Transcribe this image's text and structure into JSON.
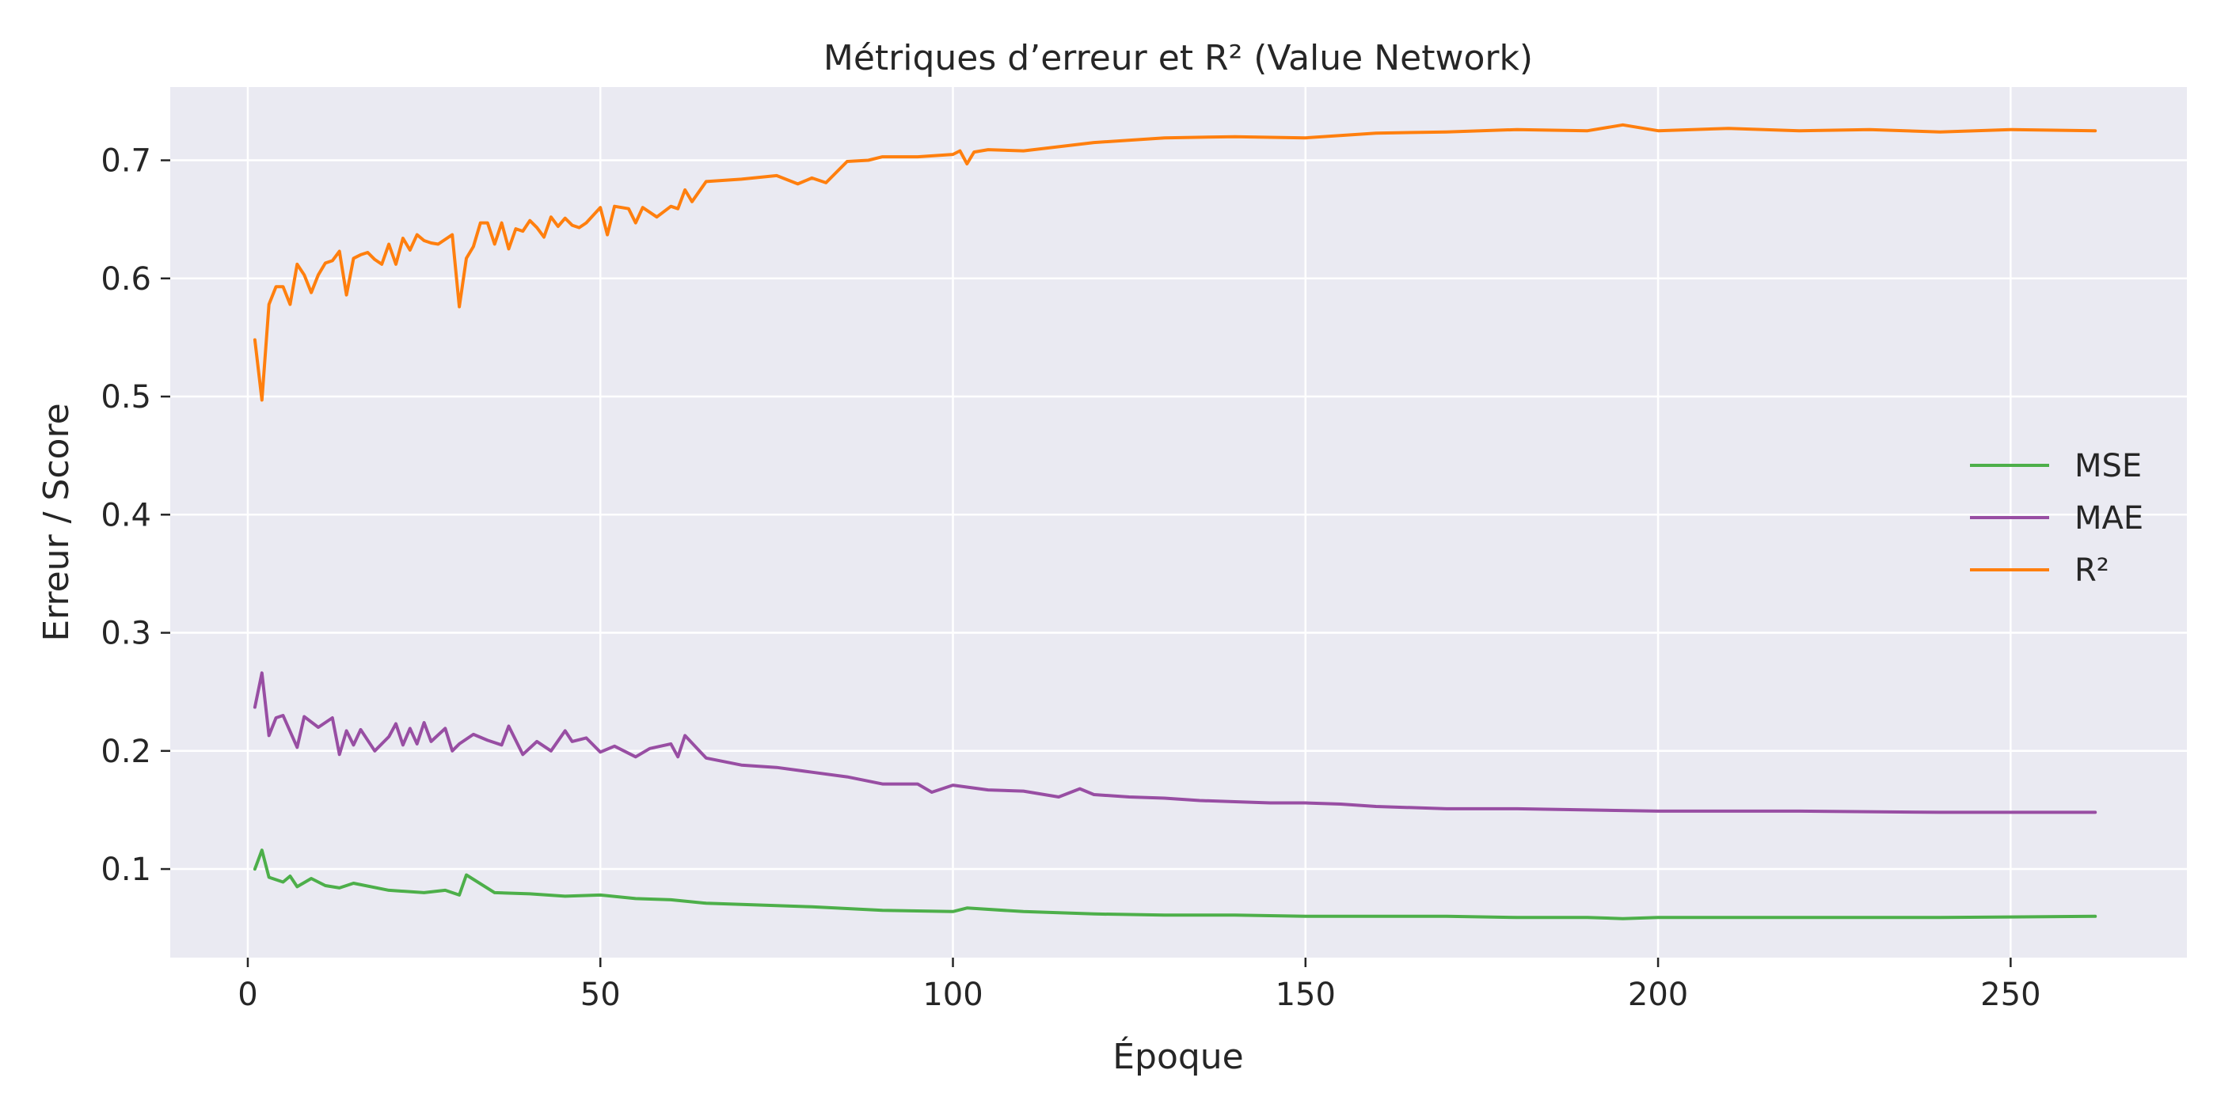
{
  "chart_data": {
    "type": "line",
    "title": "Métriques d’erreur et R² (Value Network)",
    "xlabel": "Époque",
    "ylabel": "Erreur / Score",
    "xlim": [
      -11,
      275
    ],
    "ylim": [
      0.025,
      0.762
    ],
    "xticks": [
      0,
      50,
      100,
      150,
      200,
      250
    ],
    "yticks": [
      0.1,
      0.2,
      0.3,
      0.4,
      0.5,
      0.6,
      0.7
    ],
    "grid": true,
    "background": "#EAEAF2",
    "legend_position": "center-right",
    "series": [
      {
        "name": "MSE",
        "color": "#4DAF4A",
        "x": [
          1,
          2,
          3,
          5,
          6,
          7,
          9,
          11,
          13,
          15,
          20,
          25,
          28,
          30,
          31,
          35,
          40,
          45,
          50,
          55,
          60,
          65,
          70,
          80,
          90,
          100,
          102,
          110,
          120,
          130,
          140,
          150,
          160,
          170,
          180,
          190,
          195,
          200,
          220,
          240,
          262
        ],
        "values": [
          0.1,
          0.116,
          0.093,
          0.089,
          0.094,
          0.085,
          0.092,
          0.086,
          0.084,
          0.088,
          0.082,
          0.08,
          0.082,
          0.078,
          0.095,
          0.08,
          0.079,
          0.077,
          0.078,
          0.075,
          0.074,
          0.071,
          0.07,
          0.068,
          0.065,
          0.064,
          0.067,
          0.064,
          0.062,
          0.061,
          0.061,
          0.06,
          0.06,
          0.06,
          0.059,
          0.059,
          0.058,
          0.059,
          0.059,
          0.059,
          0.06
        ]
      },
      {
        "name": "MAE",
        "color": "#984EA3",
        "x": [
          1,
          2,
          3,
          4,
          5,
          7,
          8,
          10,
          12,
          13,
          14,
          15,
          16,
          18,
          20,
          21,
          22,
          23,
          24,
          25,
          26,
          28,
          29,
          30,
          32,
          34,
          36,
          37,
          39,
          41,
          43,
          45,
          46,
          48,
          50,
          52,
          55,
          57,
          60,
          61,
          62,
          65,
          70,
          75,
          80,
          85,
          90,
          95,
          97,
          100,
          105,
          110,
          115,
          118,
          120,
          125,
          130,
          135,
          140,
          145,
          150,
          155,
          160,
          170,
          180,
          190,
          200,
          220,
          240,
          262
        ],
        "values": [
          0.237,
          0.266,
          0.213,
          0.228,
          0.23,
          0.203,
          0.229,
          0.22,
          0.228,
          0.197,
          0.217,
          0.205,
          0.218,
          0.2,
          0.212,
          0.223,
          0.205,
          0.219,
          0.206,
          0.224,
          0.208,
          0.219,
          0.2,
          0.206,
          0.214,
          0.209,
          0.205,
          0.221,
          0.197,
          0.208,
          0.2,
          0.217,
          0.208,
          0.211,
          0.199,
          0.204,
          0.195,
          0.202,
          0.206,
          0.195,
          0.213,
          0.194,
          0.188,
          0.186,
          0.182,
          0.178,
          0.172,
          0.172,
          0.165,
          0.171,
          0.167,
          0.166,
          0.161,
          0.168,
          0.163,
          0.161,
          0.16,
          0.158,
          0.157,
          0.156,
          0.156,
          0.155,
          0.153,
          0.151,
          0.151,
          0.15,
          0.149,
          0.149,
          0.148,
          0.148
        ]
      },
      {
        "name": "R²",
        "color": "#FF7F0E",
        "x": [
          1,
          2,
          3,
          4,
          5,
          6,
          7,
          8,
          9,
          10,
          11,
          12,
          13,
          14,
          15,
          16,
          17,
          18,
          19,
          20,
          21,
          22,
          23,
          24,
          25,
          26,
          27,
          28,
          29,
          30,
          31,
          32,
          33,
          34,
          35,
          36,
          37,
          38,
          39,
          40,
          41,
          42,
          43,
          44,
          45,
          46,
          47,
          48,
          50,
          51,
          52,
          54,
          55,
          56,
          58,
          60,
          61,
          62,
          63,
          65,
          70,
          75,
          78,
          80,
          82,
          85,
          88,
          90,
          95,
          100,
          101,
          102,
          103,
          105,
          110,
          120,
          130,
          140,
          150,
          160,
          170,
          180,
          190,
          195,
          200,
          210,
          220,
          230,
          240,
          250,
          262
        ],
        "values": [
          0.548,
          0.497,
          0.578,
          0.593,
          0.593,
          0.578,
          0.612,
          0.603,
          0.588,
          0.603,
          0.613,
          0.615,
          0.623,
          0.586,
          0.617,
          0.62,
          0.622,
          0.616,
          0.612,
          0.629,
          0.612,
          0.634,
          0.624,
          0.637,
          0.632,
          0.63,
          0.629,
          0.633,
          0.637,
          0.576,
          0.617,
          0.627,
          0.647,
          0.647,
          0.629,
          0.647,
          0.625,
          0.642,
          0.64,
          0.649,
          0.643,
          0.635,
          0.652,
          0.644,
          0.651,
          0.645,
          0.643,
          0.647,
          0.66,
          0.637,
          0.661,
          0.659,
          0.647,
          0.66,
          0.652,
          0.661,
          0.659,
          0.675,
          0.665,
          0.682,
          0.684,
          0.687,
          0.68,
          0.685,
          0.681,
          0.699,
          0.7,
          0.703,
          0.703,
          0.705,
          0.708,
          0.697,
          0.707,
          0.709,
          0.708,
          0.715,
          0.719,
          0.72,
          0.719,
          0.723,
          0.724,
          0.726,
          0.725,
          0.73,
          0.725,
          0.727,
          0.725,
          0.726,
          0.724,
          0.726,
          0.725
        ]
      }
    ]
  }
}
